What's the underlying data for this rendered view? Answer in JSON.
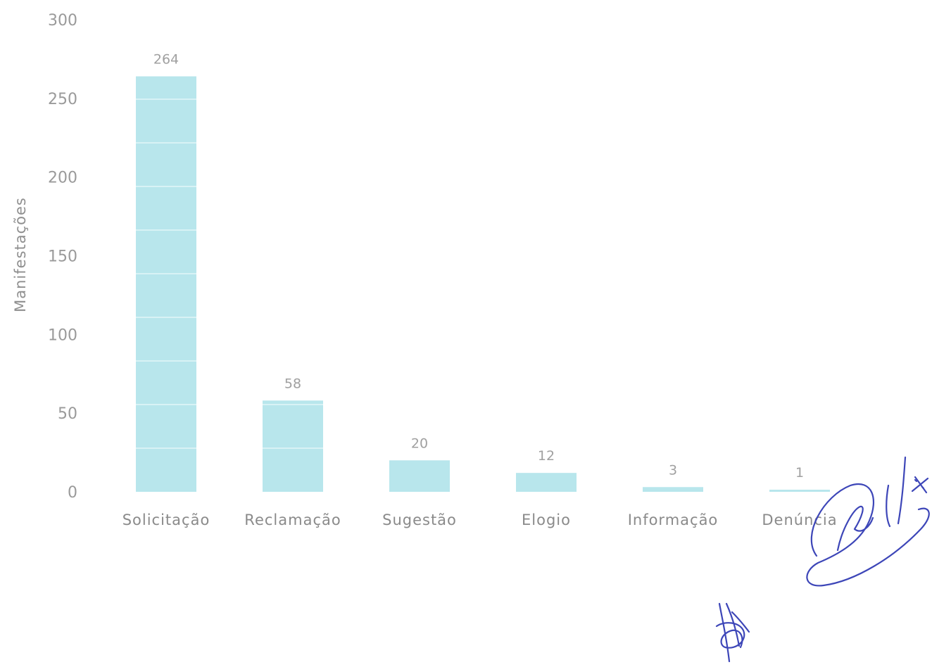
{
  "chart_data": {
    "type": "bar",
    "categories": [
      "Solicitação",
      "Reclamação",
      "Sugestão",
      "Elogio",
      "Informação",
      "Denúncia"
    ],
    "values": [
      264,
      58,
      20,
      12,
      3,
      1
    ],
    "data_labels": [
      "264",
      "58",
      "20",
      "12",
      "3",
      "1"
    ],
    "title": "",
    "xlabel": "",
    "ylabel": "Manifestações",
    "ylim": [
      0,
      300
    ],
    "yticks": [
      0,
      50,
      100,
      150,
      200,
      250,
      300
    ],
    "ytick_labels": [
      "0",
      "50",
      "100",
      "150",
      "200",
      "250",
      "300"
    ],
    "grid": false,
    "legend": "none",
    "bar_color": "#b8e6ec",
    "bar_stripe_color": "#d8f2f5"
  },
  "signatures": {
    "primary_ink_color": "#3d46b8"
  }
}
